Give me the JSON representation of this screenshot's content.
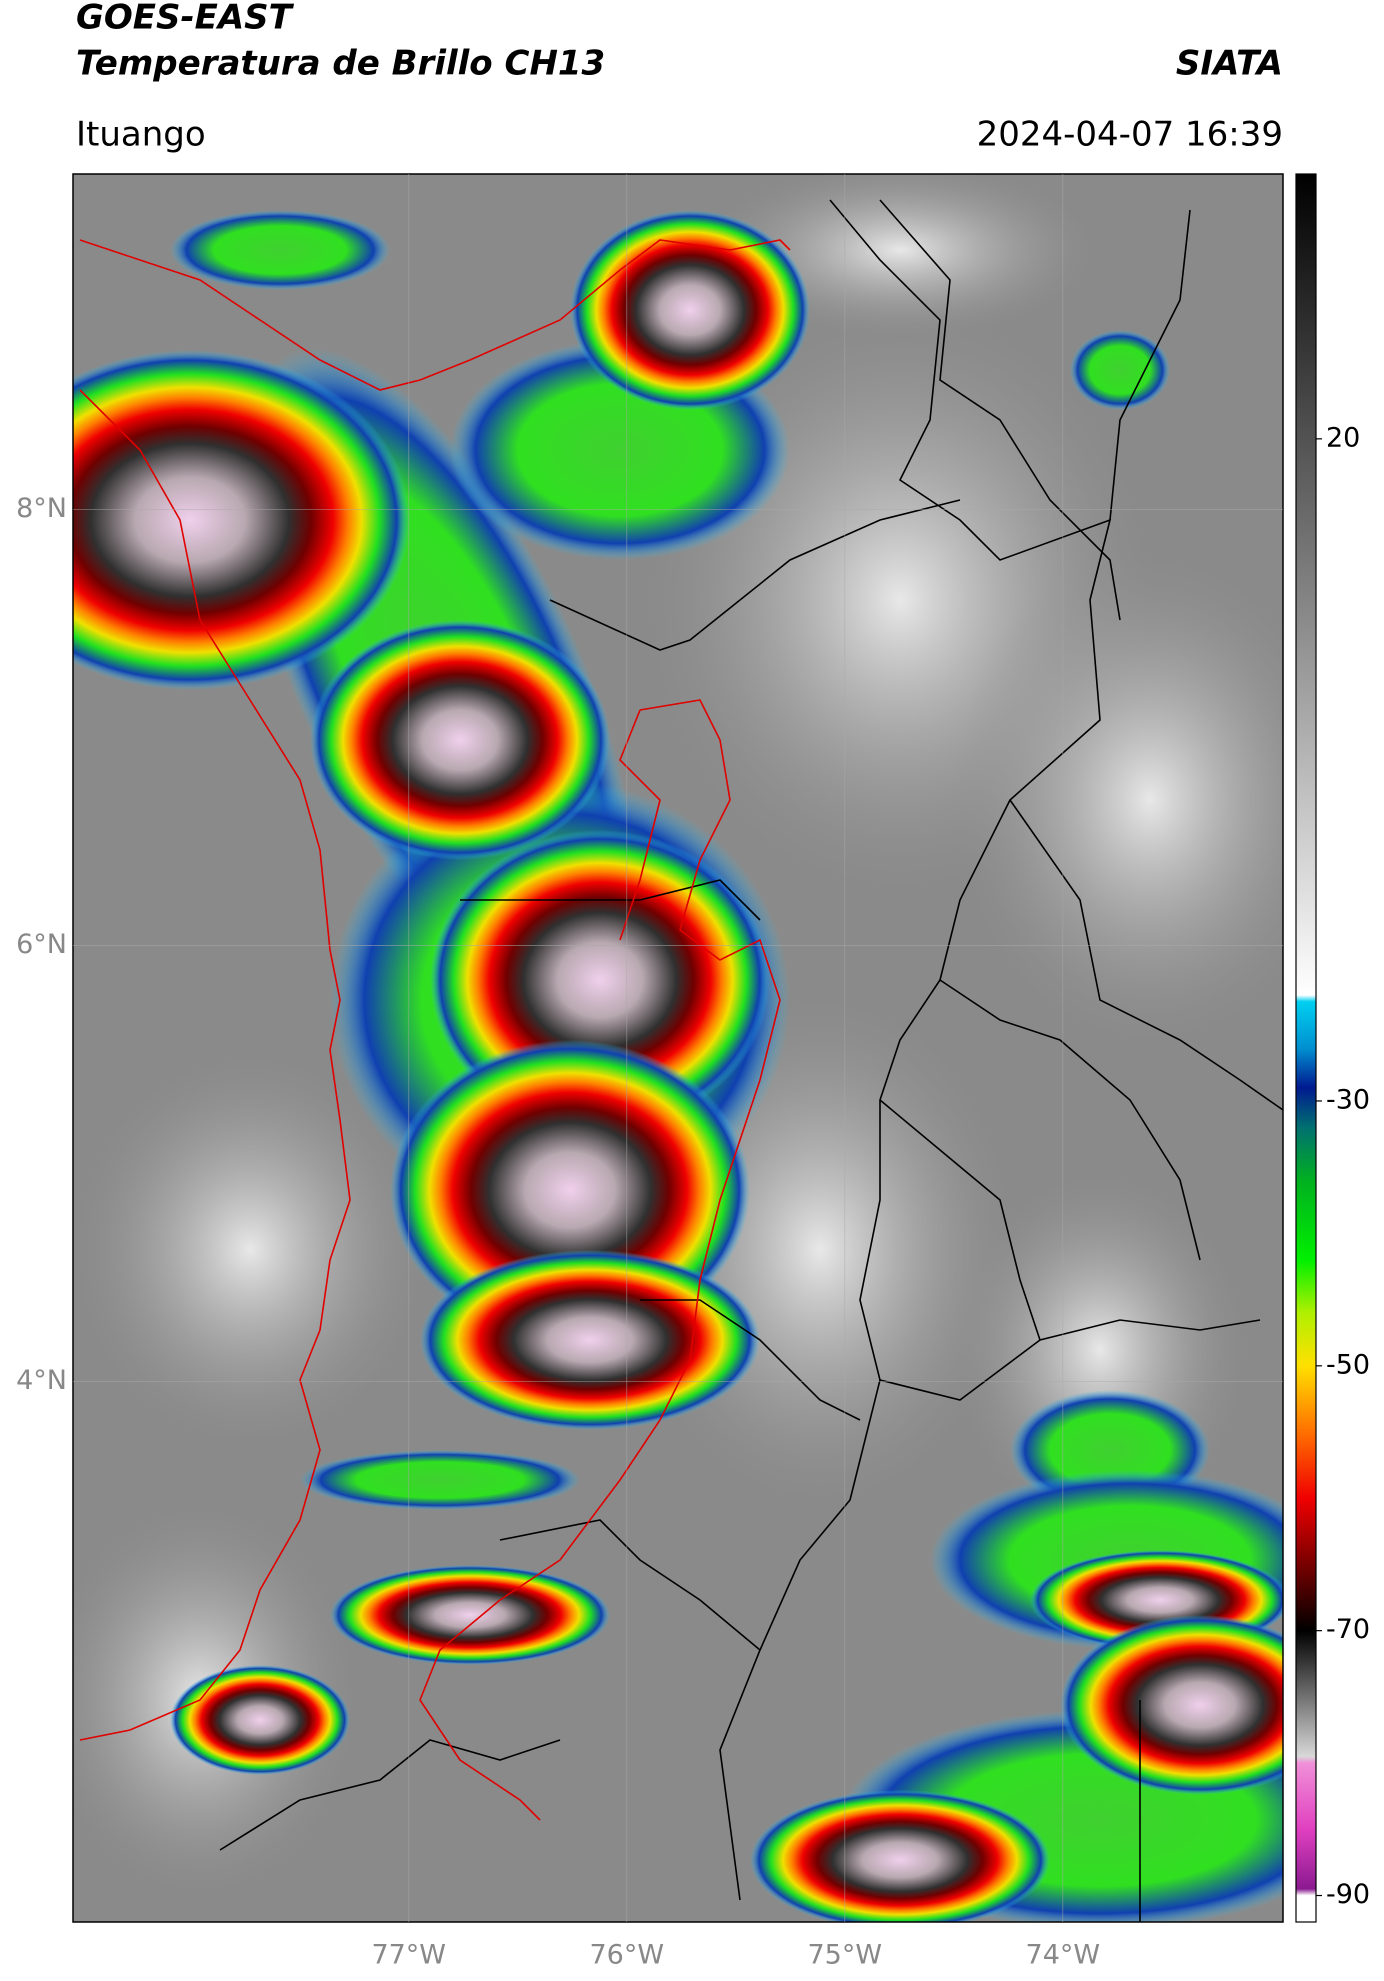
{
  "header": {
    "title": "GOES-EAST",
    "subtitle": "Temperatura de Brillo CH13",
    "source": "SIATA",
    "location": "Ituango",
    "datetime": "2024-04-07 16:39"
  },
  "map": {
    "xlim": [
      -78.54,
      -72.99
    ],
    "ylim": [
      1.52,
      9.54
    ],
    "xticks": [
      {
        "value": -77,
        "label": "77°W"
      },
      {
        "value": -76,
        "label": "76°W"
      },
      {
        "value": -75,
        "label": "75°W"
      },
      {
        "value": -74,
        "label": "74°W"
      }
    ],
    "yticks": [
      {
        "value": 8,
        "label": "8°N"
      },
      {
        "value": 6,
        "label": "6°N"
      },
      {
        "value": 4,
        "label": "4°N"
      }
    ],
    "grid": true
  },
  "colorbar": {
    "lim": [
      -92,
      40
    ],
    "ticks": [
      20,
      -30,
      -50,
      -70,
      -90
    ],
    "colormap": [
      {
        "value": 40,
        "color": "#000000"
      },
      {
        "value": -22,
        "color": "#ffffff"
      },
      {
        "value": -22.5,
        "color": "#00d0f0"
      },
      {
        "value": -26,
        "color": "#0090d0"
      },
      {
        "value": -29,
        "color": "#001a90"
      },
      {
        "value": -32,
        "color": "#007070"
      },
      {
        "value": -36,
        "color": "#00b020"
      },
      {
        "value": -42,
        "color": "#00f000"
      },
      {
        "value": -46,
        "color": "#b0f000"
      },
      {
        "value": -50,
        "color": "#ffe000"
      },
      {
        "value": -55,
        "color": "#ff7000"
      },
      {
        "value": -60,
        "color": "#f00000"
      },
      {
        "value": -66,
        "color": "#600000"
      },
      {
        "value": -70,
        "color": "#000000"
      },
      {
        "value": -79.5,
        "color": "#d8d8d8"
      },
      {
        "value": -80,
        "color": "#f090d8"
      },
      {
        "value": -85,
        "color": "#e040c0"
      },
      {
        "value": -89.5,
        "color": "#8a1a90"
      },
      {
        "value": -90,
        "color": "#ffffff"
      },
      {
        "value": -92,
        "color": "#ffffff"
      }
    ]
  }
}
